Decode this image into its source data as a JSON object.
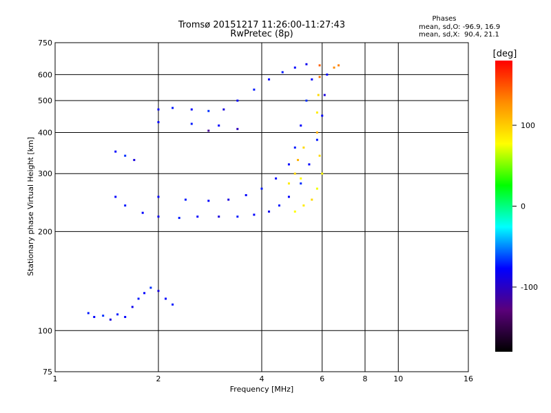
{
  "chart_data": {
    "type": "scatter",
    "title": "Tromsø 20151217 11:26:00-11:27:43",
    "subtitle": "RwPretec (8p)",
    "xlabel": "Frequency [MHz]",
    "ylabel": "Stationary phase Virtual Height [km]",
    "x_scale": "log",
    "y_scale": "log",
    "xlim": [
      1,
      16
    ],
    "ylim": [
      75,
      750
    ],
    "x_ticks": [
      1,
      2,
      4,
      6,
      8,
      10,
      16
    ],
    "y_ticks": [
      75,
      100,
      200,
      300,
      400,
      500,
      600,
      750
    ],
    "x_grid": [
      2,
      4,
      6,
      8,
      10
    ],
    "y_grid": [
      100,
      200,
      300,
      400,
      500,
      600
    ],
    "stats": {
      "heading": "Phases",
      "line1": "mean, sd,O: -96.9, 16.9",
      "line2": "mean, sd,X:  90.4, 21.1"
    },
    "colorbar": {
      "label": "[deg]",
      "range": [
        -180,
        180
      ],
      "ticks": [
        100,
        0,
        -100
      ],
      "colors": [
        "#ff0000",
        "#ff8c00",
        "#ffff00",
        "#00ff00",
        "#00ffff",
        "#0000ff",
        "#5a007a",
        "#000000"
      ]
    },
    "series": [
      {
        "values": [
          {
            "x": 1.25,
            "y": 113,
            "phase": -95
          },
          {
            "x": 1.3,
            "y": 110,
            "phase": -100
          },
          {
            "x": 1.38,
            "y": 111,
            "phase": -90
          },
          {
            "x": 1.45,
            "y": 108,
            "phase": -110
          },
          {
            "x": 1.52,
            "y": 112,
            "phase": -95
          },
          {
            "x": 1.6,
            "y": 110,
            "phase": -100
          },
          {
            "x": 1.68,
            "y": 118,
            "phase": -105
          },
          {
            "x": 1.75,
            "y": 125,
            "phase": -95
          },
          {
            "x": 1.82,
            "y": 130,
            "phase": -100
          },
          {
            "x": 1.9,
            "y": 135,
            "phase": -90
          },
          {
            "x": 2.0,
            "y": 132,
            "phase": -110
          },
          {
            "x": 2.1,
            "y": 125,
            "phase": -100
          },
          {
            "x": 2.2,
            "y": 120,
            "phase": -95
          },
          {
            "x": 1.5,
            "y": 350,
            "phase": -100
          },
          {
            "x": 1.6,
            "y": 340,
            "phase": -90
          },
          {
            "x": 1.7,
            "y": 330,
            "phase": -110
          },
          {
            "x": 1.5,
            "y": 255,
            "phase": -100
          },
          {
            "x": 1.6,
            "y": 240,
            "phase": -95
          },
          {
            "x": 1.8,
            "y": 228,
            "phase": -100
          },
          {
            "x": 2.0,
            "y": 222,
            "phase": -105
          },
          {
            "x": 2.3,
            "y": 220,
            "phase": -95
          },
          {
            "x": 2.6,
            "y": 222,
            "phase": -100
          },
          {
            "x": 3.0,
            "y": 222,
            "phase": -110
          },
          {
            "x": 3.4,
            "y": 222,
            "phase": -95
          },
          {
            "x": 3.8,
            "y": 225,
            "phase": -100
          },
          {
            "x": 4.2,
            "y": 230,
            "phase": -105
          },
          {
            "x": 4.5,
            "y": 240,
            "phase": -95
          },
          {
            "x": 4.8,
            "y": 255,
            "phase": -100
          },
          {
            "x": 5.2,
            "y": 280,
            "phase": -90
          },
          {
            "x": 5.5,
            "y": 320,
            "phase": -100
          },
          {
            "x": 5.8,
            "y": 380,
            "phase": -95
          },
          {
            "x": 6.0,
            "y": 450,
            "phase": -100
          },
          {
            "x": 6.1,
            "y": 520,
            "phase": -110
          },
          {
            "x": 6.2,
            "y": 600,
            "phase": -100
          },
          {
            "x": 2.0,
            "y": 255,
            "phase": -100
          },
          {
            "x": 2.4,
            "y": 250,
            "phase": -95
          },
          {
            "x": 2.8,
            "y": 248,
            "phase": -100
          },
          {
            "x": 3.2,
            "y": 250,
            "phase": -110
          },
          {
            "x": 3.6,
            "y": 258,
            "phase": -100
          },
          {
            "x": 4.0,
            "y": 270,
            "phase": -95
          },
          {
            "x": 4.4,
            "y": 290,
            "phase": -100
          },
          {
            "x": 4.8,
            "y": 320,
            "phase": -100
          },
          {
            "x": 5.0,
            "y": 360,
            "phase": -95
          },
          {
            "x": 5.2,
            "y": 420,
            "phase": -100
          },
          {
            "x": 5.4,
            "y": 500,
            "phase": -90
          },
          {
            "x": 5.6,
            "y": 580,
            "phase": -100
          },
          {
            "x": 2.0,
            "y": 470,
            "phase": -100
          },
          {
            "x": 2.2,
            "y": 475,
            "phase": -95
          },
          {
            "x": 2.5,
            "y": 470,
            "phase": -100
          },
          {
            "x": 2.8,
            "y": 465,
            "phase": -90
          },
          {
            "x": 3.1,
            "y": 470,
            "phase": -110
          },
          {
            "x": 3.4,
            "y": 500,
            "phase": -100
          },
          {
            "x": 3.8,
            "y": 540,
            "phase": -95
          },
          {
            "x": 4.2,
            "y": 580,
            "phase": -100
          },
          {
            "x": 4.6,
            "y": 610,
            "phase": -95
          },
          {
            "x": 5.0,
            "y": 630,
            "phase": -100
          },
          {
            "x": 5.4,
            "y": 645,
            "phase": -105
          },
          {
            "x": 2.0,
            "y": 430,
            "phase": -100
          },
          {
            "x": 2.5,
            "y": 425,
            "phase": -95
          },
          {
            "x": 3.0,
            "y": 420,
            "phase": -100
          },
          {
            "x": 3.4,
            "y": 410,
            "phase": -120
          },
          {
            "x": 2.8,
            "y": 405,
            "phase": -130
          }
        ]
      },
      {
        "values": [
          {
            "x": 5.0,
            "y": 230,
            "phase": 90
          },
          {
            "x": 5.3,
            "y": 240,
            "phase": 95
          },
          {
            "x": 5.6,
            "y": 250,
            "phase": 100
          },
          {
            "x": 5.8,
            "y": 270,
            "phase": 85
          },
          {
            "x": 6.0,
            "y": 300,
            "phase": 90
          },
          {
            "x": 5.9,
            "y": 340,
            "phase": 100
          },
          {
            "x": 5.8,
            "y": 400,
            "phase": 110
          },
          {
            "x": 5.8,
            "y": 460,
            "phase": 95
          },
          {
            "x": 5.85,
            "y": 520,
            "phase": 100
          },
          {
            "x": 5.9,
            "y": 590,
            "phase": 130
          },
          {
            "x": 5.9,
            "y": 640,
            "phase": 140
          },
          {
            "x": 5.0,
            "y": 300,
            "phase": 100
          },
          {
            "x": 5.2,
            "y": 290,
            "phase": 90
          },
          {
            "x": 4.8,
            "y": 280,
            "phase": 95
          },
          {
            "x": 5.3,
            "y": 360,
            "phase": 100
          },
          {
            "x": 5.1,
            "y": 330,
            "phase": 110
          },
          {
            "x": 6.5,
            "y": 630,
            "phase": 120
          },
          {
            "x": 6.7,
            "y": 640,
            "phase": 125
          }
        ]
      }
    ]
  }
}
